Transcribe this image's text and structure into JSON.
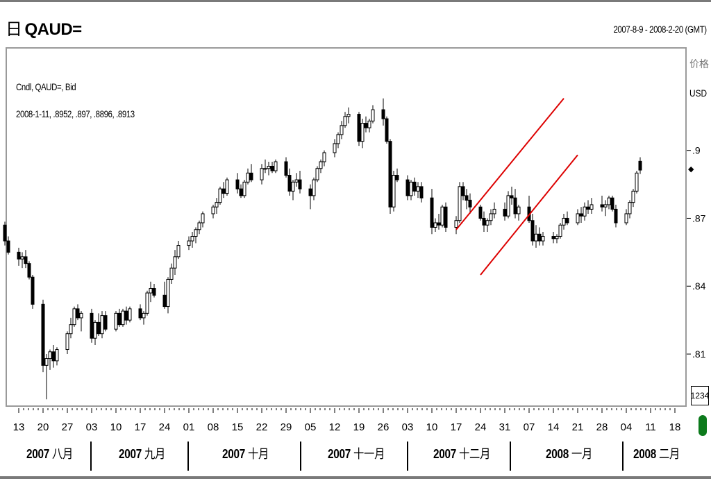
{
  "header": {
    "title": "QAUD=",
    "date_range": "2007-8-9 - 2008-2-20 (GMT)"
  },
  "legend": {
    "line1": "Cndl, QAUD=, Bid",
    "line2": "2008-1-11, .8952, .897, .8896, .8913"
  },
  "axis": {
    "y_title": "价格",
    "y_unit": "USD",
    "volume_box": "1234"
  },
  "colors": {
    "channel": "#dd0000",
    "status": "#0c7a1c"
  },
  "months": [
    {
      "year": "2007",
      "name": "八月"
    },
    {
      "year": "2007",
      "name": "九月"
    },
    {
      "year": "2007",
      "name": "十月"
    },
    {
      "year": "2007",
      "name": "十一月"
    },
    {
      "year": "2007",
      "name": "十二月"
    },
    {
      "year": "2008",
      "name": "一月"
    },
    {
      "year": "2008",
      "name": "二月"
    }
  ],
  "chart_data": {
    "type": "candlestick",
    "series_name": "QAUD=",
    "ylim": [
      0.787,
      0.945
    ],
    "y_ticks": [
      ".9",
      ".87",
      ".84",
      ".81"
    ],
    "y_tick_values": [
      0.9,
      0.87,
      0.84,
      0.81
    ],
    "x_ticks": [
      "13",
      "20",
      "27",
      "03",
      "10",
      "17",
      "24",
      "01",
      "08",
      "15",
      "22",
      "29",
      "05",
      "12",
      "19",
      "26",
      "03",
      "10",
      "17",
      "24",
      "31",
      "07",
      "14",
      "21",
      "28",
      "04",
      "11",
      "18"
    ],
    "x_start_date": "2007-08-13",
    "x_end_date": "2008-02-18",
    "candles_start_date": "2007-08-09",
    "candles": [
      [
        0.867,
        0.8685,
        0.858,
        0.86
      ],
      [
        0.86,
        0.862,
        0.854,
        0.855
      ],
      [
        0.855,
        0.857,
        0.849,
        0.852
      ],
      [
        0.852,
        0.855,
        0.848,
        0.853
      ],
      [
        0.853,
        0.856,
        0.848,
        0.85
      ],
      [
        0.85,
        0.851,
        0.843,
        0.844
      ],
      [
        0.844,
        0.845,
        0.83,
        0.832
      ],
      [
        0.832,
        0.834,
        0.802,
        0.805
      ],
      [
        0.805,
        0.81,
        0.79,
        0.808
      ],
      [
        0.808,
        0.812,
        0.803,
        0.811
      ],
      [
        0.811,
        0.814,
        0.804,
        0.807
      ],
      [
        0.807,
        0.813,
        0.805,
        0.812
      ],
      [
        0.812,
        0.82,
        0.81,
        0.819
      ],
      [
        0.819,
        0.826,
        0.817,
        0.823
      ],
      [
        0.823,
        0.831,
        0.822,
        0.83
      ],
      [
        0.83,
        0.832,
        0.825,
        0.826
      ],
      [
        0.826,
        0.829,
        0.82,
        0.828
      ],
      [
        0.828,
        0.83,
        0.815,
        0.817
      ],
      [
        0.817,
        0.825,
        0.814,
        0.824
      ],
      [
        0.824,
        0.828,
        0.818,
        0.819
      ],
      [
        0.819,
        0.829,
        0.817,
        0.827
      ],
      [
        0.827,
        0.829,
        0.82,
        0.821
      ],
      [
        0.821,
        0.829,
        0.82,
        0.828
      ],
      [
        0.828,
        0.83,
        0.822,
        0.823
      ],
      [
        0.823,
        0.83,
        0.822,
        0.829
      ],
      [
        0.829,
        0.831,
        0.823,
        0.825
      ],
      [
        0.825,
        0.831,
        0.824,
        0.83
      ],
      [
        0.83,
        0.832,
        0.825,
        0.826
      ],
      [
        0.826,
        0.829,
        0.823,
        0.828
      ],
      [
        0.828,
        0.838,
        0.827,
        0.837
      ],
      [
        0.837,
        0.842,
        0.833,
        0.839
      ],
      [
        0.839,
        0.841,
        0.835,
        0.836
      ],
      [
        0.836,
        0.842,
        0.83,
        0.831
      ],
      [
        0.831,
        0.844,
        0.828,
        0.843
      ],
      [
        0.843,
        0.85,
        0.841,
        0.848
      ],
      [
        0.848,
        0.856,
        0.845,
        0.853
      ],
      [
        0.853,
        0.86,
        0.852,
        0.858
      ],
      [
        0.858,
        0.862,
        0.856,
        0.86
      ],
      [
        0.86,
        0.864,
        0.857,
        0.862
      ],
      [
        0.862,
        0.866,
        0.859,
        0.865
      ],
      [
        0.865,
        0.869,
        0.863,
        0.868
      ],
      [
        0.868,
        0.873,
        0.866,
        0.872
      ],
      [
        0.872,
        0.876,
        0.87,
        0.875
      ],
      [
        0.875,
        0.879,
        0.872,
        0.877
      ],
      [
        0.877,
        0.884,
        0.876,
        0.883
      ],
      [
        0.883,
        0.886,
        0.879,
        0.881
      ],
      [
        0.881,
        0.888,
        0.88,
        0.887
      ],
      [
        0.887,
        0.89,
        0.881,
        0.883
      ],
      [
        0.883,
        0.885,
        0.879,
        0.88
      ],
      [
        0.88,
        0.887,
        0.879,
        0.886
      ],
      [
        0.886,
        0.892,
        0.885,
        0.89
      ],
      [
        0.89,
        0.894,
        0.886,
        0.887
      ],
      [
        0.887,
        0.894,
        0.885,
        0.892
      ],
      [
        0.892,
        0.896,
        0.89,
        0.892
      ],
      [
        0.892,
        0.895,
        0.889,
        0.893
      ],
      [
        0.893,
        0.895,
        0.89,
        0.891
      ],
      [
        0.891,
        0.896,
        0.89,
        0.895
      ],
      [
        0.895,
        0.897,
        0.888,
        0.889
      ],
      [
        0.889,
        0.892,
        0.88,
        0.882
      ],
      [
        0.882,
        0.887,
        0.878,
        0.886
      ],
      [
        0.886,
        0.89,
        0.884,
        0.887
      ],
      [
        0.887,
        0.891,
        0.881,
        0.883
      ],
      [
        0.883,
        0.885,
        0.874,
        0.88
      ],
      [
        0.88,
        0.888,
        0.878,
        0.887
      ],
      [
        0.887,
        0.893,
        0.886,
        0.892
      ],
      [
        0.892,
        0.896,
        0.89,
        0.895
      ],
      [
        0.895,
        0.9,
        0.893,
        0.899
      ],
      [
        0.899,
        0.905,
        0.897,
        0.903
      ],
      [
        0.903,
        0.908,
        0.901,
        0.907
      ],
      [
        0.907,
        0.913,
        0.905,
        0.911
      ],
      [
        0.911,
        0.917,
        0.91,
        0.915
      ],
      [
        0.915,
        0.919,
        0.912,
        0.916
      ],
      [
        0.916,
        0.917,
        0.902,
        0.904
      ],
      [
        0.904,
        0.914,
        0.901,
        0.912
      ],
      [
        0.912,
        0.915,
        0.908,
        0.91
      ],
      [
        0.91,
        0.914,
        0.908,
        0.913
      ],
      [
        0.913,
        0.92,
        0.912,
        0.918
      ],
      [
        0.918,
        0.923,
        0.911,
        0.914
      ],
      [
        0.914,
        0.915,
        0.903,
        0.904
      ],
      [
        0.904,
        0.905,
        0.872,
        0.875
      ],
      [
        0.875,
        0.891,
        0.873,
        0.889
      ],
      [
        0.889,
        0.892,
        0.886,
        0.887
      ],
      [
        0.887,
        0.889,
        0.878,
        0.88
      ],
      [
        0.88,
        0.887,
        0.878,
        0.886
      ],
      [
        0.886,
        0.888,
        0.88,
        0.882
      ],
      [
        0.882,
        0.886,
        0.879,
        0.884
      ],
      [
        0.884,
        0.886,
        0.877,
        0.879
      ],
      [
        0.879,
        0.883,
        0.863,
        0.866
      ],
      [
        0.866,
        0.87,
        0.864,
        0.868
      ],
      [
        0.868,
        0.872,
        0.865,
        0.867
      ],
      [
        0.867,
        0.876,
        0.866,
        0.875
      ],
      [
        0.875,
        0.877,
        0.864,
        0.866
      ],
      [
        0.866,
        0.871,
        0.863,
        0.869
      ],
      [
        0.869,
        0.886,
        0.868,
        0.884
      ],
      [
        0.884,
        0.886,
        0.878,
        0.88
      ],
      [
        0.88,
        0.883,
        0.874,
        0.878
      ],
      [
        0.878,
        0.881,
        0.872,
        0.875
      ],
      [
        0.875,
        0.876,
        0.869,
        0.87
      ],
      [
        0.87,
        0.873,
        0.864,
        0.867
      ],
      [
        0.867,
        0.87,
        0.864,
        0.869
      ],
      [
        0.869,
        0.874,
        0.867,
        0.872
      ],
      [
        0.872,
        0.877,
        0.87,
        0.874
      ],
      [
        0.874,
        0.877,
        0.869,
        0.871
      ],
      [
        0.871,
        0.882,
        0.87,
        0.88
      ],
      [
        0.88,
        0.884,
        0.876,
        0.879
      ],
      [
        0.879,
        0.883,
        0.87,
        0.872
      ],
      [
        0.872,
        0.876,
        0.869,
        0.875
      ],
      [
        0.875,
        0.88,
        0.868,
        0.869
      ],
      [
        0.869,
        0.872,
        0.858,
        0.86
      ],
      [
        0.86,
        0.867,
        0.857,
        0.863
      ],
      [
        0.863,
        0.866,
        0.858,
        0.86
      ],
      [
        0.86,
        0.864,
        0.858,
        0.862
      ],
      [
        0.862,
        0.864,
        0.859,
        0.861
      ],
      [
        0.861,
        0.863,
        0.859,
        0.862
      ],
      [
        0.862,
        0.868,
        0.861,
        0.867
      ],
      [
        0.867,
        0.872,
        0.865,
        0.87
      ],
      [
        0.87,
        0.873,
        0.867,
        0.868
      ],
      [
        0.868,
        0.874,
        0.867,
        0.872
      ],
      [
        0.872,
        0.875,
        0.868,
        0.871
      ],
      [
        0.871,
        0.877,
        0.869,
        0.875
      ],
      [
        0.875,
        0.878,
        0.872,
        0.874
      ],
      [
        0.874,
        0.879,
        0.872,
        0.876
      ],
      [
        0.876,
        0.88,
        0.873,
        0.875
      ],
      [
        0.875,
        0.878,
        0.871,
        0.876
      ],
      [
        0.876,
        0.88,
        0.874,
        0.879
      ],
      [
        0.879,
        0.88,
        0.873,
        0.874
      ],
      [
        0.874,
        0.876,
        0.866,
        0.868
      ],
      [
        0.868,
        0.874,
        0.867,
        0.872
      ],
      [
        0.872,
        0.878,
        0.87,
        0.877
      ],
      [
        0.877,
        0.883,
        0.875,
        0.882
      ],
      [
        0.882,
        0.891,
        0.881,
        0.89
      ],
      [
        0.8952,
        0.897,
        0.8896,
        0.8913
      ]
    ],
    "channel_lines": [
      {
        "from": [
          "2007-12-17",
          0.865
        ],
        "to": [
          "2008-01-17",
          0.923
        ]
      },
      {
        "from": [
          "2007-12-24",
          0.845
        ],
        "to": [
          "2008-01-21",
          0.898
        ]
      }
    ]
  }
}
